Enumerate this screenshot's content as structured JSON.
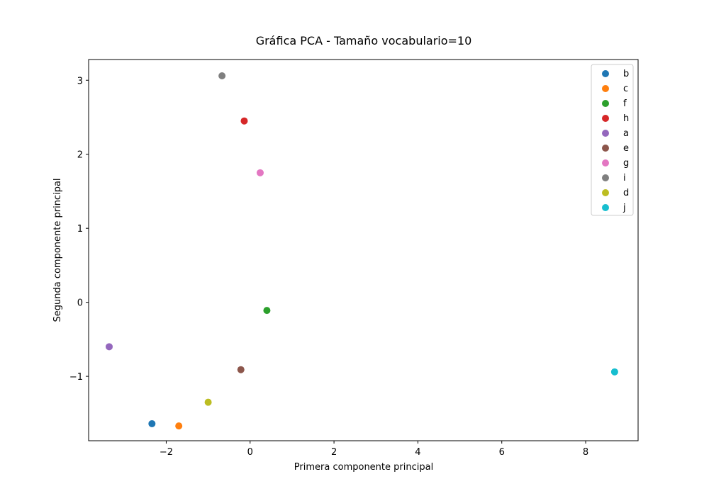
{
  "chart_data": {
    "type": "scatter",
    "title": "Gráfica PCA - Tamaño vocabulario=10",
    "xlabel": "Primera componente principal",
    "ylabel": "Segunda componente principal",
    "xlim": [
      -3.85,
      9.25
    ],
    "ylim": [
      -1.87,
      3.28
    ],
    "xticks": [
      -2,
      0,
      2,
      4,
      6,
      8
    ],
    "xtick_labels": [
      "−2",
      "0",
      "2",
      "4",
      "6",
      "8"
    ],
    "yticks": [
      -1,
      0,
      1,
      2,
      3
    ],
    "ytick_labels": [
      "−1",
      "0",
      "1",
      "2",
      "3"
    ],
    "grid": false,
    "legend_position": "top-right",
    "series": [
      {
        "name": "b",
        "color": "#1f77b4",
        "x": -2.34,
        "y": -1.64
      },
      {
        "name": "c",
        "color": "#ff7f0e",
        "x": -1.7,
        "y": -1.67
      },
      {
        "name": "f",
        "color": "#2ca02c",
        "x": 0.4,
        "y": -0.11
      },
      {
        "name": "h",
        "color": "#d62728",
        "x": -0.14,
        "y": 2.45
      },
      {
        "name": "a",
        "color": "#9467bd",
        "x": -3.36,
        "y": -0.6
      },
      {
        "name": "e",
        "color": "#8c564b",
        "x": -0.22,
        "y": -0.91
      },
      {
        "name": "g",
        "color": "#e377c2",
        "x": 0.24,
        "y": 1.75
      },
      {
        "name": "i",
        "color": "#7f7f7f",
        "x": -0.67,
        "y": 3.06
      },
      {
        "name": "d",
        "color": "#bcbd22",
        "x": -1.0,
        "y": -1.35
      },
      {
        "name": "j",
        "color": "#17becf",
        "x": 8.69,
        "y": -0.94
      }
    ]
  }
}
